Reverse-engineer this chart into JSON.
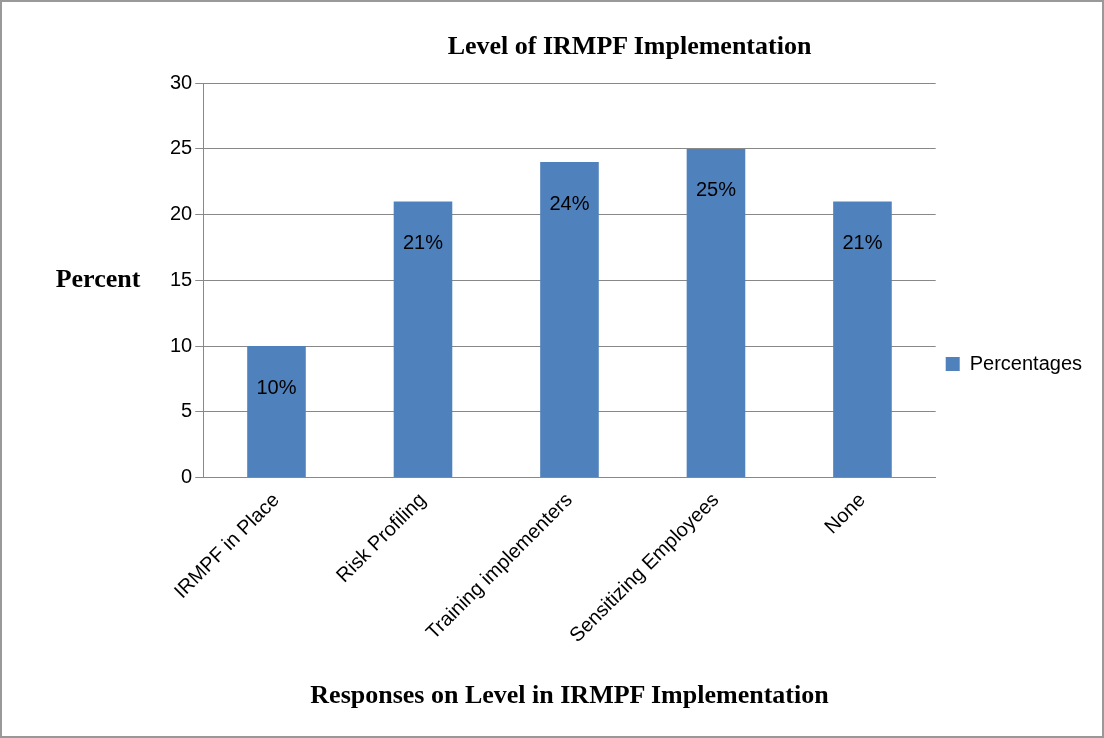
{
  "chart_data": {
    "type": "bar",
    "title": "Level of IRMPF Implementation",
    "xlabel": "Responses on Level in IRMPF Implementation",
    "ylabel": "Percent",
    "categories": [
      "IRMPF in Place",
      "Risk Profiling",
      "Training implementers",
      "Sensitizing Employees",
      "None"
    ],
    "series": [
      {
        "name": "Percentages",
        "color": "#4f81bd",
        "values": [
          10,
          21,
          24,
          25,
          21
        ],
        "value_labels": [
          "10%",
          "21%",
          "24%",
          "25%",
          "21%"
        ]
      }
    ],
    "ylim": [
      0,
      30
    ],
    "yticks": [
      0,
      5,
      10,
      15,
      20,
      25,
      30
    ],
    "grid": "y",
    "legend": "right"
  }
}
